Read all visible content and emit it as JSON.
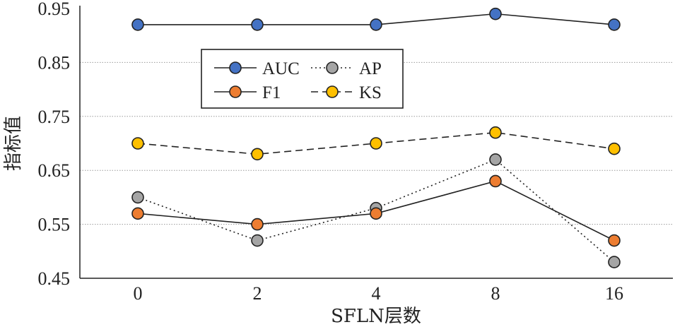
{
  "chart_data": {
    "type": "line",
    "xlabel": "SFLN层数",
    "ylabel": "指标值",
    "categories": [
      "0",
      "2",
      "4",
      "8",
      "16"
    ],
    "yticks": [
      "0.45",
      "0.55",
      "0.65",
      "0.75",
      "0.85",
      "0.95"
    ],
    "ylim": [
      0.45,
      0.95
    ],
    "grid": true,
    "legend_position": "upper-left",
    "series": [
      {
        "name": "AUC",
        "values": [
          0.92,
          0.92,
          0.92,
          0.94,
          0.92
        ],
        "color": "#4472C4",
        "line": "solid"
      },
      {
        "name": "F1",
        "values": [
          0.57,
          0.55,
          0.57,
          0.63,
          0.52
        ],
        "color": "#ED7D31",
        "line": "solid"
      },
      {
        "name": "AP",
        "values": [
          0.6,
          0.52,
          0.58,
          0.67,
          0.48
        ],
        "color": "#A5A5A5",
        "line": "dotted"
      },
      {
        "name": "KS",
        "values": [
          0.7,
          0.68,
          0.7,
          0.72,
          0.69
        ],
        "color": "#FFC000",
        "line": "dashed"
      }
    ]
  }
}
